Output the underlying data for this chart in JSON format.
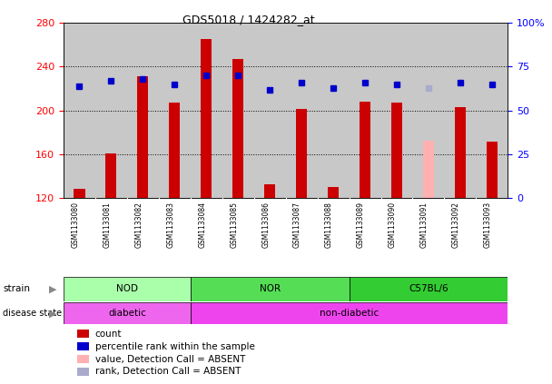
{
  "title": "GDS5018 / 1424282_at",
  "samples": [
    "GSM1133080",
    "GSM1133081",
    "GSM1133082",
    "GSM1133083",
    "GSM1133084",
    "GSM1133085",
    "GSM1133086",
    "GSM1133087",
    "GSM1133088",
    "GSM1133089",
    "GSM1133090",
    "GSM1133091",
    "GSM1133092",
    "GSM1133093"
  ],
  "count_values": [
    128,
    161,
    231,
    207,
    265,
    247,
    132,
    201,
    130,
    208,
    207,
    172,
    203,
    171
  ],
  "count_absent": [
    false,
    false,
    false,
    false,
    false,
    false,
    false,
    false,
    false,
    false,
    false,
    true,
    false,
    false
  ],
  "percentile_values": [
    64,
    67,
    68,
    65,
    70,
    70,
    62,
    66,
    63,
    66,
    65,
    63,
    66,
    65
  ],
  "percentile_absent": [
    false,
    false,
    false,
    false,
    false,
    false,
    false,
    false,
    false,
    false,
    false,
    true,
    false,
    false
  ],
  "ylim_left": [
    120,
    280
  ],
  "ylim_right": [
    0,
    100
  ],
  "yticks_left": [
    120,
    160,
    200,
    240,
    280
  ],
  "yticks_right": [
    0,
    25,
    50,
    75,
    100
  ],
  "ytick_labels_right": [
    "0",
    "25",
    "50",
    "75",
    "100%"
  ],
  "bar_color": "#cc0000",
  "bar_color_absent": "#ffb0b0",
  "dot_color": "#0000cc",
  "dot_color_absent": "#aaaacc",
  "col_bg_color": "#c8c8c8",
  "plot_bg": "#ffffff",
  "strain_groups": [
    {
      "label": "NOD",
      "start": 0,
      "end": 3,
      "color": "#aaffaa"
    },
    {
      "label": "NOR",
      "start": 4,
      "end": 8,
      "color": "#55dd55"
    },
    {
      "label": "C57BL/6",
      "start": 9,
      "end": 13,
      "color": "#33cc33"
    }
  ],
  "disease_groups": [
    {
      "label": "diabetic",
      "start": 0,
      "end": 3,
      "color": "#ee66ee"
    },
    {
      "label": "non-diabetic",
      "start": 4,
      "end": 13,
      "color": "#ee44ee"
    }
  ],
  "legend_items": [
    {
      "color": "#cc0000",
      "label": "count"
    },
    {
      "color": "#0000cc",
      "label": "percentile rank within the sample"
    },
    {
      "color": "#ffb0b0",
      "label": "value, Detection Call = ABSENT"
    },
    {
      "color": "#aaaacc",
      "label": "rank, Detection Call = ABSENT"
    }
  ]
}
